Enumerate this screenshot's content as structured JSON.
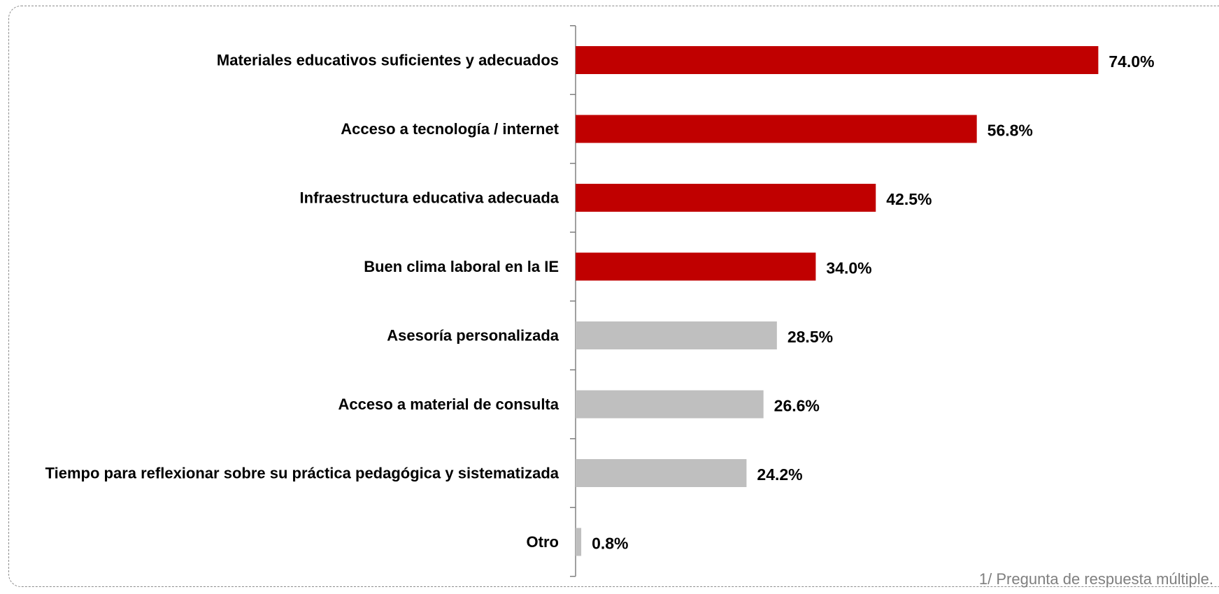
{
  "chart_data": {
    "type": "bar",
    "orientation": "horizontal",
    "categories": [
      "Materiales educativos suficientes y adecuados",
      "Acceso a tecnología / internet",
      "Infraestructura educativa adecuada",
      "Buen clima laboral en la IE",
      "Asesoría personalizada",
      "Acceso a material de consulta",
      "Tiempo para reflexionar sobre su práctica pedagógica y sistematizada",
      "Otro"
    ],
    "values": [
      74.0,
      56.8,
      42.5,
      34.0,
      28.5,
      26.6,
      24.2,
      0.8
    ],
    "value_labels": [
      "74.0%",
      "56.8%",
      "42.5%",
      "34.0%",
      "28.5%",
      "26.6%",
      "24.2%",
      "0.8%"
    ],
    "bar_colors": [
      "#C00000",
      "#C00000",
      "#C00000",
      "#C00000",
      "#BFBFBF",
      "#BFBFBF",
      "#BFBFBF",
      "#BFBFBF"
    ],
    "xlim": [
      0,
      100
    ],
    "grid": false,
    "legend": "none",
    "title": "",
    "xlabel": "",
    "ylabel": ""
  },
  "footnote": "1/ Pregunta de respuesta múltiple."
}
